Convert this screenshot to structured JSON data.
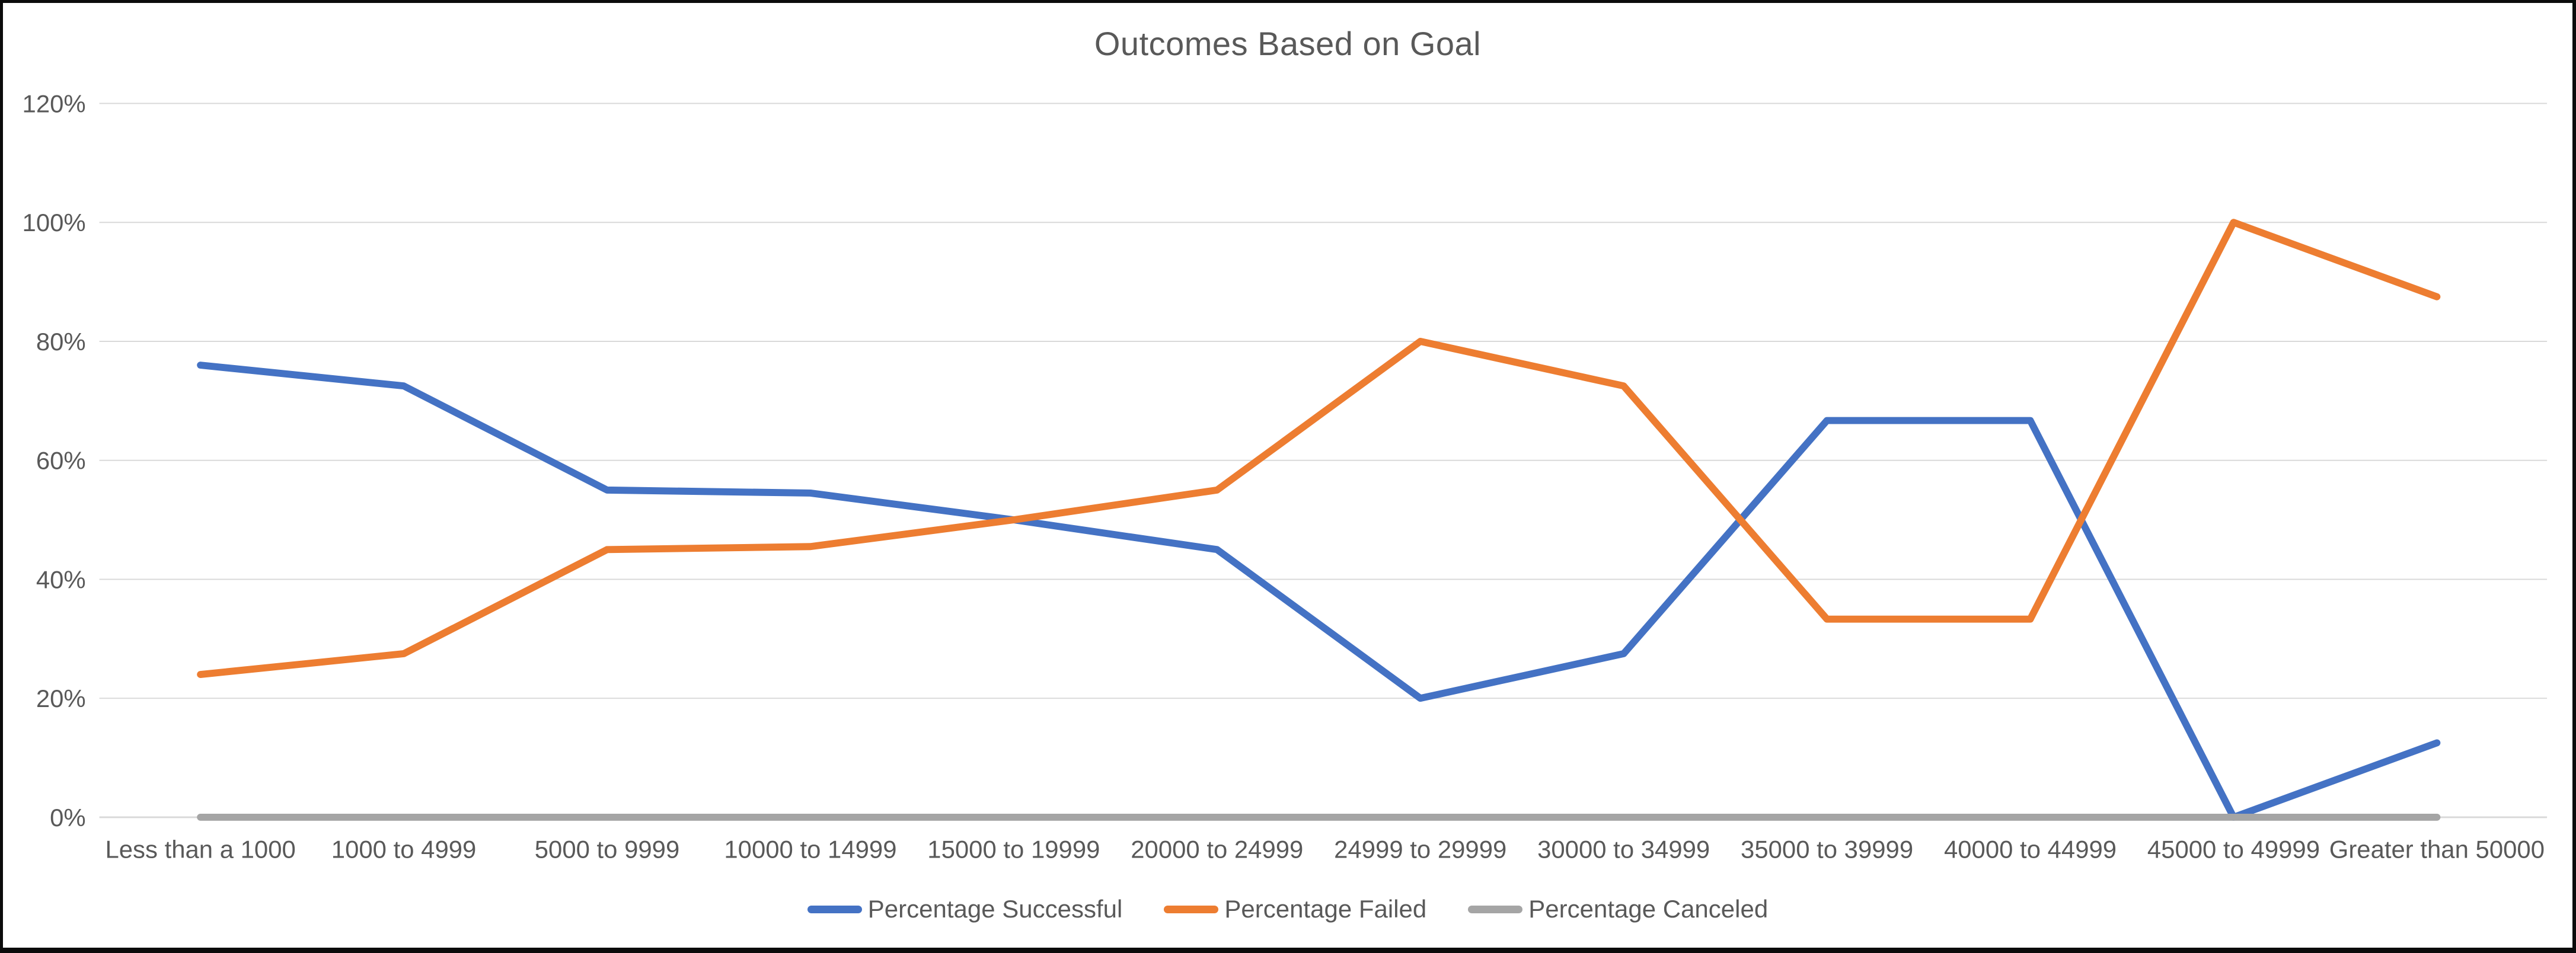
{
  "chart_data": {
    "type": "line",
    "title": "Outcomes Based on Goal",
    "categories": [
      "Less than a 1000",
      "1000 to 4999",
      "5000 to 9999",
      "10000 to 14999",
      "15000 to 19999",
      "20000 to 24999",
      "24999 to 29999",
      "30000 to 34999",
      "35000 to 39999",
      "40000 to 44999",
      "45000 to 49999",
      "Greater than 50000"
    ],
    "series": [
      {
        "name": "Percentage Successful",
        "color": "#4472C4",
        "values": [
          76,
          72.5,
          55,
          54.5,
          50,
          45,
          20,
          27.5,
          66.7,
          66.7,
          0,
          12.5
        ]
      },
      {
        "name": "Percentage Failed",
        "color": "#ED7D31",
        "values": [
          24,
          27.5,
          45,
          45.5,
          50,
          55,
          80,
          72.5,
          33.3,
          33.3,
          100,
          87.5
        ]
      },
      {
        "name": "Percentage Canceled",
        "color": "#A5A5A5",
        "values": [
          0,
          0,
          0,
          0,
          0,
          0,
          0,
          0,
          0,
          0,
          0,
          0
        ]
      }
    ],
    "y_axis": {
      "min": 0,
      "max": 120,
      "unit": "%",
      "tick_labels": [
        "120%",
        "100%",
        "80%",
        "60%",
        "40%",
        "20%",
        "0%"
      ],
      "tick_values": [
        120,
        100,
        80,
        60,
        40,
        20,
        0
      ]
    },
    "x_axis": {
      "label": ""
    },
    "legend": {
      "position": "bottom"
    },
    "grid": true,
    "colors": {
      "gridline": "#D9D9D9",
      "axis_line": "#D9D9D9",
      "axis_text": "#595959",
      "title_text": "#595959"
    }
  }
}
